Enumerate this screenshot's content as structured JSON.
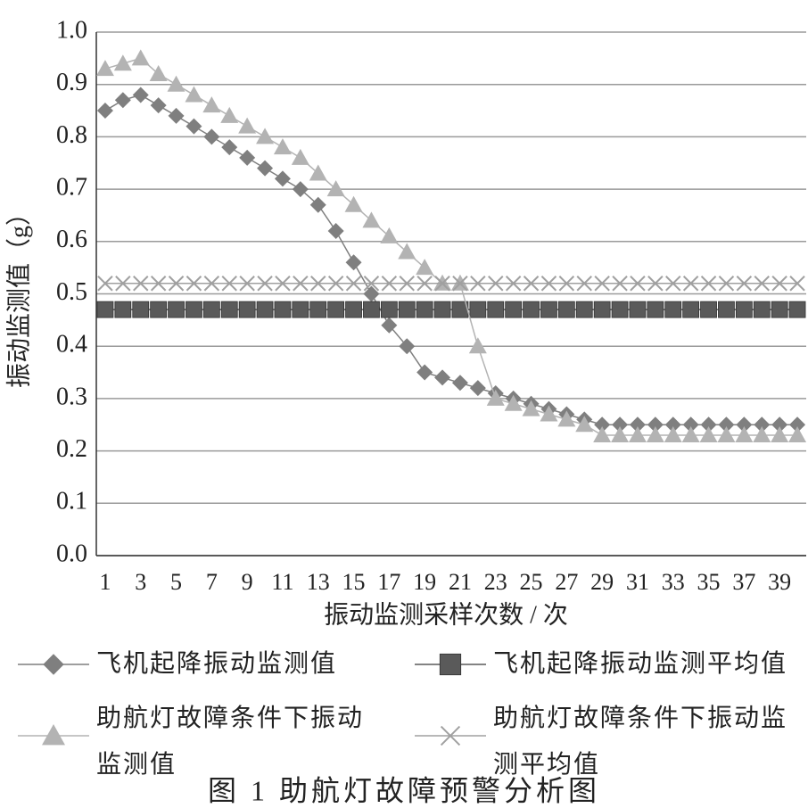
{
  "chart_data": {
    "type": "line",
    "caption": "图 1  助航灯故障预警分析图",
    "x_label": "振动监测采样次数 / 次",
    "y_label": "振动监测值（g）",
    "categories": [
      "1",
      null,
      "3",
      null,
      "5",
      null,
      "7",
      null,
      "9",
      null,
      "11",
      null,
      "13",
      null,
      "15",
      null,
      "17",
      null,
      "19",
      null,
      "21",
      null,
      "23",
      null,
      "25",
      null,
      "27",
      null,
      "29",
      null,
      "31",
      null,
      "33",
      null,
      "35",
      null,
      "37",
      null,
      "39",
      null
    ],
    "ylim": [
      0,
      1
    ],
    "yticks": [
      {
        "value": 0,
        "label": "0.0"
      },
      0.1,
      0.2,
      0.3,
      0.4,
      0.5,
      0.6,
      0.7,
      0.8,
      0.9,
      {
        "value": 1,
        "label": "1.0"
      }
    ],
    "grid": true,
    "series": [
      {
        "name": "飞机起降振动监测值",
        "color": "#7f7f7f",
        "marker": "diamond",
        "values": [
          0.85,
          0.87,
          0.88,
          0.86,
          0.84,
          0.82,
          0.8,
          0.78,
          0.76,
          0.74,
          0.72,
          0.7,
          0.67,
          0.62,
          0.56,
          0.5,
          0.44,
          0.4,
          0.35,
          0.34,
          0.33,
          0.32,
          0.31,
          0.3,
          0.29,
          0.28,
          0.27,
          0.26,
          0.25,
          0.25,
          0.25,
          0.25,
          0.25,
          0.25,
          0.25,
          0.25,
          0.25,
          0.25,
          0.25,
          0.25
        ]
      },
      {
        "name": "飞机起降振动监测平均值",
        "color": "#5a5a5a",
        "marker": "square",
        "values": [
          0.47,
          0.47,
          0.47,
          0.47,
          0.47,
          0.47,
          0.47,
          0.47,
          0.47,
          0.47,
          0.47,
          0.47,
          0.47,
          0.47,
          0.47,
          0.47,
          0.47,
          0.47,
          0.47,
          0.47,
          0.47,
          0.47,
          0.47,
          0.47,
          0.47,
          0.47,
          0.47,
          0.47,
          0.47,
          0.47,
          0.47,
          0.47,
          0.47,
          0.47,
          0.47,
          0.47,
          0.47,
          0.47,
          0.47,
          0.47
        ]
      },
      {
        "name": "助航灯故障条件下振动监测值",
        "color": "#b3b3b3",
        "marker": "triangle",
        "values": [
          0.93,
          0.94,
          0.95,
          0.92,
          0.9,
          0.88,
          0.86,
          0.84,
          0.82,
          0.8,
          0.78,
          0.76,
          0.73,
          0.7,
          0.67,
          0.64,
          0.61,
          0.58,
          0.55,
          0.52,
          0.52,
          0.4,
          0.3,
          0.29,
          0.28,
          0.27,
          0.26,
          0.25,
          0.23,
          0.23,
          0.23,
          0.23,
          0.23,
          0.23,
          0.23,
          0.23,
          0.23,
          0.23,
          0.23,
          0.23
        ]
      },
      {
        "name": "助航灯故障条件下振动监测平均值",
        "color": "#a0a0a0",
        "marker": "x",
        "values": [
          0.52,
          0.52,
          0.52,
          0.52,
          0.52,
          0.52,
          0.52,
          0.52,
          0.52,
          0.52,
          0.52,
          0.52,
          0.52,
          0.52,
          0.52,
          0.52,
          0.52,
          0.52,
          0.52,
          0.52,
          0.52,
          0.52,
          0.52,
          0.52,
          0.52,
          0.52,
          0.52,
          0.52,
          0.52,
          0.52,
          0.52,
          0.52,
          0.52,
          0.52,
          0.52,
          0.52,
          0.52,
          0.52,
          0.52,
          0.52
        ]
      }
    ]
  }
}
